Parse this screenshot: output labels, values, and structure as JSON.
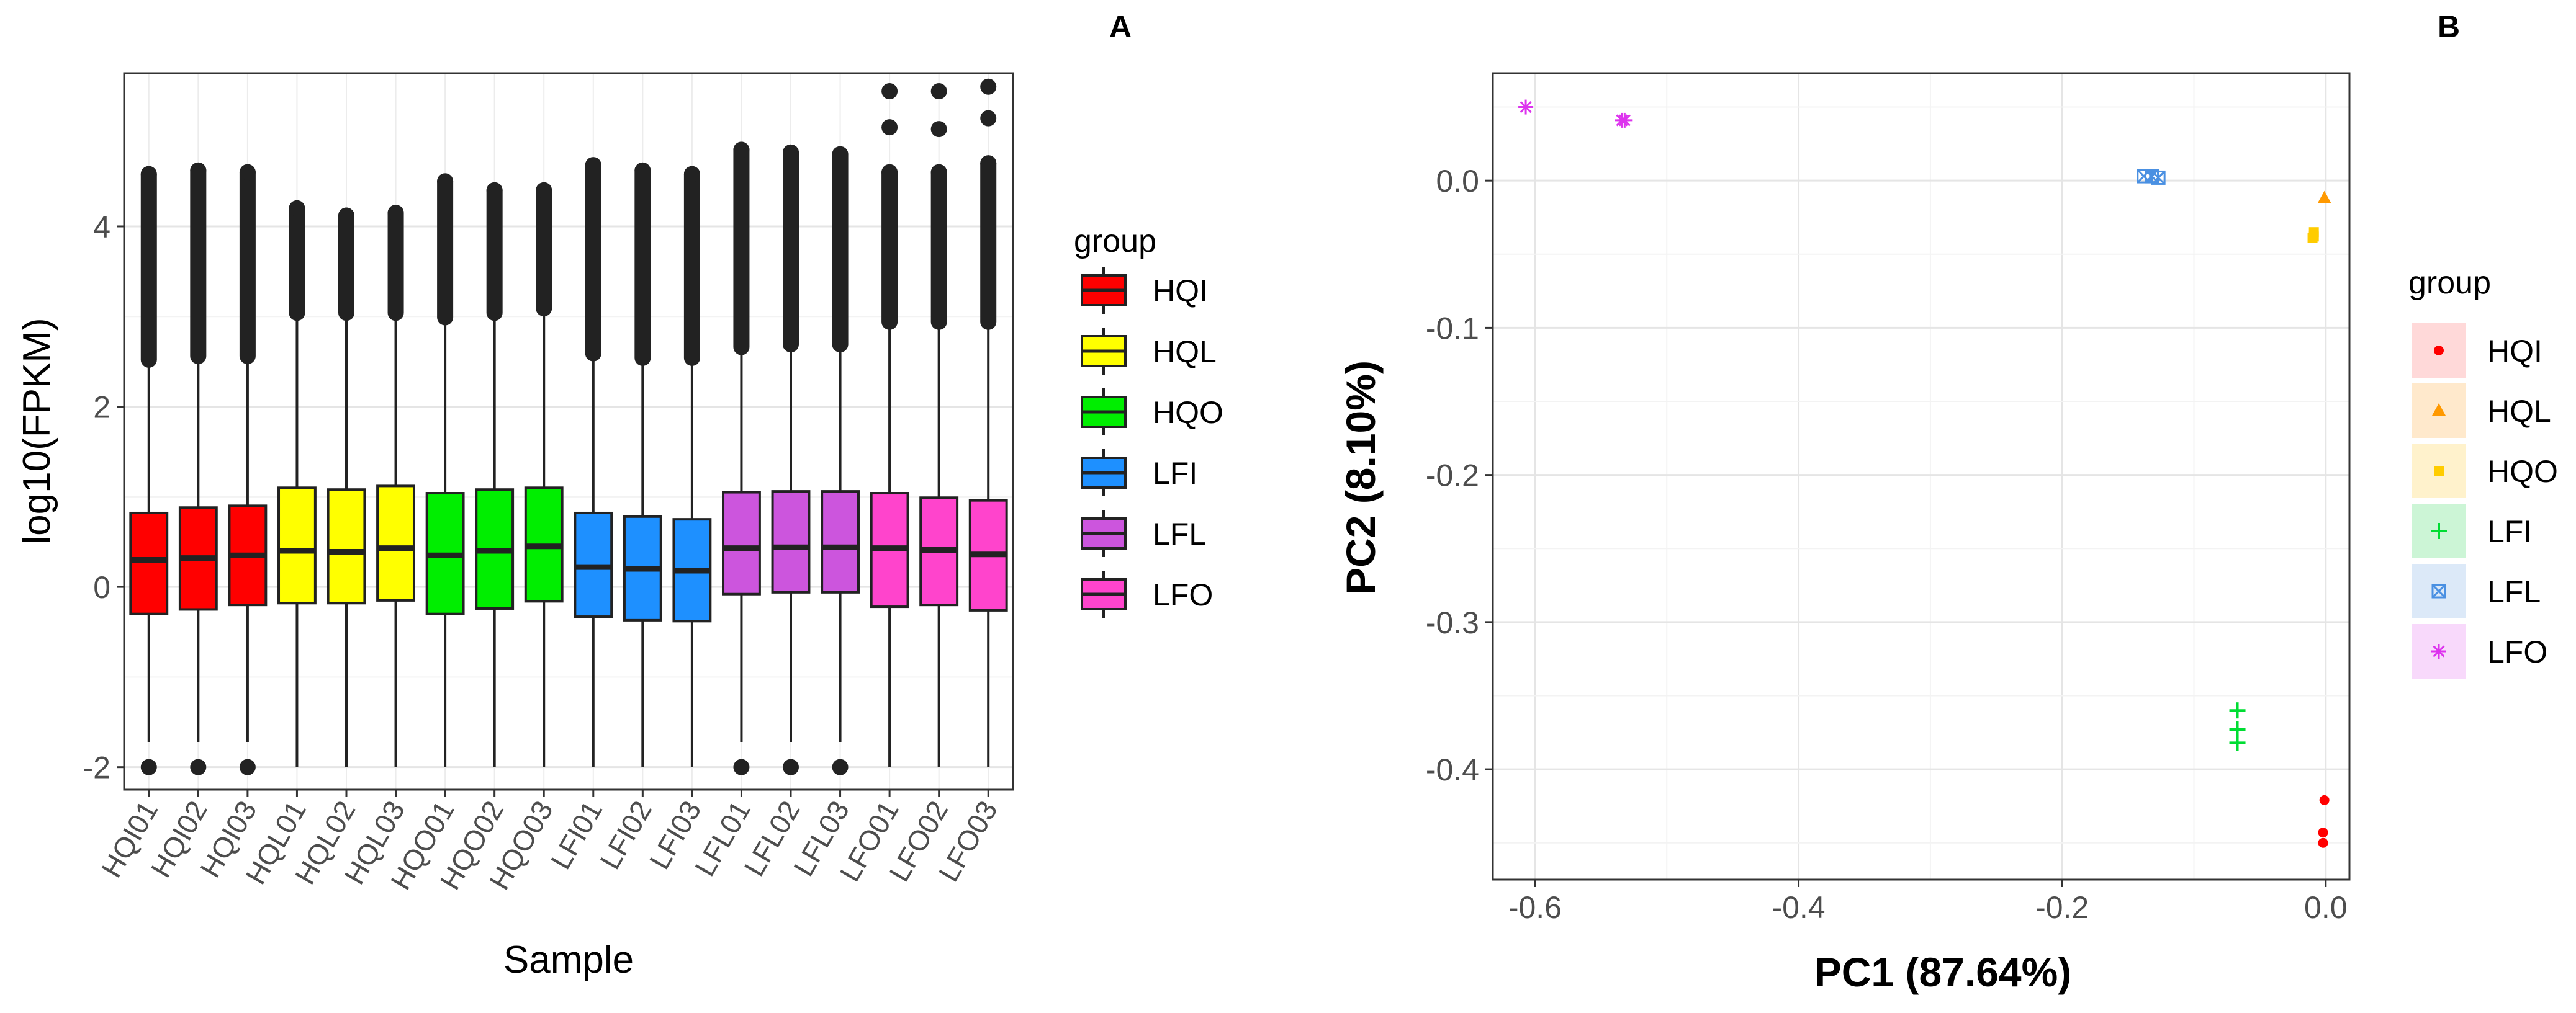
{
  "chart_data": [
    {
      "panel_label": "A",
      "type": "box",
      "title": "",
      "xlabel": "Sample",
      "ylabel": "log10(FPKM)",
      "ylim": [
        -2.25,
        5.7
      ],
      "yticks": [
        -2,
        0,
        2,
        4
      ],
      "ytick_labels": [
        "-2",
        "0",
        "2",
        "4"
      ],
      "grid": true,
      "legend": {
        "title": "group",
        "position": "right",
        "entries": [
          {
            "label": "HQI",
            "color": "#FF0000"
          },
          {
            "label": "HQL",
            "color": "#FFFF00"
          },
          {
            "label": "HQO",
            "color": "#00EE00"
          },
          {
            "label": "LFI",
            "color": "#1E90FF"
          },
          {
            "label": "LFL",
            "color": "#CC55DD"
          },
          {
            "label": "LFO",
            "color": "#FF44CC"
          }
        ]
      },
      "samples": [
        {
          "name": "HQI01",
          "group": "HQI",
          "q1": -0.3,
          "median": 0.3,
          "q3": 0.82,
          "whisker_low": -1.72,
          "whisker_high": 2.48,
          "outlier_max": 4.58,
          "low_outlier": -2.0
        },
        {
          "name": "HQI02",
          "group": "HQI",
          "q1": -0.25,
          "median": 0.32,
          "q3": 0.88,
          "whisker_low": -1.72,
          "whisker_high": 2.52,
          "outlier_max": 4.62,
          "low_outlier": -2.0
        },
        {
          "name": "HQI03",
          "group": "HQI",
          "q1": -0.2,
          "median": 0.35,
          "q3": 0.9,
          "whisker_low": -1.72,
          "whisker_high": 2.52,
          "outlier_max": 4.6,
          "low_outlier": -2.0
        },
        {
          "name": "HQL01",
          "group": "HQL",
          "q1": -0.18,
          "median": 0.4,
          "q3": 1.1,
          "whisker_low": -2.0,
          "whisker_high": 3.0,
          "outlier_max": 4.2,
          "low_outlier": null
        },
        {
          "name": "HQL02",
          "group": "HQL",
          "q1": -0.18,
          "median": 0.39,
          "q3": 1.08,
          "whisker_low": -2.0,
          "whisker_high": 3.0,
          "outlier_max": 4.12,
          "low_outlier": null
        },
        {
          "name": "HQL03",
          "group": "HQL",
          "q1": -0.15,
          "median": 0.43,
          "q3": 1.12,
          "whisker_low": -2.0,
          "whisker_high": 3.0,
          "outlier_max": 4.15,
          "low_outlier": null
        },
        {
          "name": "HQO01",
          "group": "HQO",
          "q1": -0.3,
          "median": 0.35,
          "q3": 1.04,
          "whisker_low": -2.0,
          "whisker_high": 2.95,
          "outlier_max": 4.5,
          "low_outlier": null
        },
        {
          "name": "HQO02",
          "group": "HQO",
          "q1": -0.24,
          "median": 0.4,
          "q3": 1.08,
          "whisker_low": -2.0,
          "whisker_high": 3.0,
          "outlier_max": 4.4,
          "low_outlier": null
        },
        {
          "name": "HQO03",
          "group": "HQO",
          "q1": -0.16,
          "median": 0.45,
          "q3": 1.1,
          "whisker_low": -2.0,
          "whisker_high": 3.05,
          "outlier_max": 4.4,
          "low_outlier": null
        },
        {
          "name": "LFI01",
          "group": "LFI",
          "q1": -0.33,
          "median": 0.22,
          "q3": 0.82,
          "whisker_low": -2.0,
          "whisker_high": 2.55,
          "outlier_max": 4.68,
          "low_outlier": null
        },
        {
          "name": "LFI02",
          "group": "LFI",
          "q1": -0.37,
          "median": 0.2,
          "q3": 0.78,
          "whisker_low": -2.0,
          "whisker_high": 2.5,
          "outlier_max": 4.62,
          "low_outlier": null
        },
        {
          "name": "LFI03",
          "group": "LFI",
          "q1": -0.38,
          "median": 0.18,
          "q3": 0.75,
          "whisker_low": -2.0,
          "whisker_high": 2.5,
          "outlier_max": 4.58,
          "low_outlier": null
        },
        {
          "name": "LFL01",
          "group": "LFL",
          "q1": -0.08,
          "median": 0.43,
          "q3": 1.05,
          "whisker_low": -1.72,
          "whisker_high": 2.62,
          "outlier_max": 4.85,
          "low_outlier": -2.0
        },
        {
          "name": "LFL02",
          "group": "LFL",
          "q1": -0.06,
          "median": 0.44,
          "q3": 1.06,
          "whisker_low": -1.72,
          "whisker_high": 2.65,
          "outlier_max": 4.82,
          "low_outlier": -2.0
        },
        {
          "name": "LFL03",
          "group": "LFL",
          "q1": -0.06,
          "median": 0.44,
          "q3": 1.06,
          "whisker_low": -1.72,
          "whisker_high": 2.65,
          "outlier_max": 4.8,
          "low_outlier": -2.0
        },
        {
          "name": "LFO01",
          "group": "LFO",
          "q1": -0.22,
          "median": 0.43,
          "q3": 1.04,
          "whisker_low": -2.0,
          "whisker_high": 2.9,
          "outlier_max": 4.6,
          "low_outlier": null,
          "extra_outliers": [
            5.1,
            5.5
          ]
        },
        {
          "name": "LFO02",
          "group": "LFO",
          "q1": -0.2,
          "median": 0.41,
          "q3": 0.99,
          "whisker_low": -2.0,
          "whisker_high": 2.9,
          "outlier_max": 4.6,
          "low_outlier": null,
          "extra_outliers": [
            5.08,
            5.5
          ]
        },
        {
          "name": "LFO03",
          "group": "LFO",
          "q1": -0.26,
          "median": 0.36,
          "q3": 0.96,
          "whisker_low": -2.0,
          "whisker_high": 2.9,
          "outlier_max": 4.7,
          "low_outlier": null,
          "extra_outliers": [
            5.2,
            5.55
          ]
        }
      ]
    },
    {
      "panel_label": "B",
      "type": "scatter",
      "title": "",
      "xlabel": "PC1 (87.64%)",
      "ylabel": "PC2 (8.10%)",
      "xlim": [
        -0.632,
        0.018
      ],
      "ylim": [
        -0.475,
        0.073
      ],
      "xticks": [
        -0.6,
        -0.4,
        -0.2,
        0.0
      ],
      "xtick_labels": [
        "-0.6",
        "-0.4",
        "-0.2",
        "0.0"
      ],
      "yticks": [
        0.0,
        -0.1,
        -0.2,
        -0.3,
        -0.4
      ],
      "ytick_labels": [
        "0.0",
        "-0.1",
        "-0.2",
        "-0.3",
        "-0.4"
      ],
      "grid": true,
      "legend": {
        "title": "group",
        "position": "right",
        "entries": [
          {
            "label": "HQI",
            "color": "#FF0000",
            "shape": "circle",
            "bg": "#FFD9D9"
          },
          {
            "label": "HQL",
            "color": "#FF9900",
            "shape": "triangle",
            "bg": "#FFE9CC"
          },
          {
            "label": "HQO",
            "color": "#FFCC00",
            "shape": "square",
            "bg": "#FFF2CC"
          },
          {
            "label": "LFI",
            "color": "#00DD33",
            "shape": "plus",
            "bg": "#CCF5D6"
          },
          {
            "label": "LFL",
            "color": "#4A90E2",
            "shape": "boxx",
            "bg": "#DCE9F8"
          },
          {
            "label": "LFO",
            "color": "#DD33EE",
            "shape": "asterisk",
            "bg": "#F8D9FB"
          }
        ]
      },
      "series": [
        {
          "name": "HQI",
          "points": [
            [
              -0.001,
              -0.421
            ],
            [
              -0.002,
              -0.443
            ],
            [
              -0.002,
              -0.45
            ]
          ]
        },
        {
          "name": "HQL",
          "points": [
            [
              -0.001,
              -0.012
            ]
          ]
        },
        {
          "name": "HQO",
          "points": [
            [
              -0.009,
              -0.035
            ],
            [
              -0.009,
              -0.038
            ],
            [
              -0.01,
              -0.039
            ]
          ]
        },
        {
          "name": "LFI",
          "points": [
            [
              -0.067,
              -0.36
            ],
            [
              -0.067,
              -0.373
            ],
            [
              -0.067,
              -0.382
            ]
          ]
        },
        {
          "name": "LFL",
          "points": [
            [
              -0.138,
              0.003
            ],
            [
              -0.132,
              0.003
            ],
            [
              -0.127,
              0.002
            ]
          ]
        },
        {
          "name": "LFO",
          "points": [
            [
              -0.607,
              0.05
            ],
            [
              -0.534,
              0.041
            ],
            [
              -0.532,
              0.041
            ]
          ]
        }
      ]
    }
  ]
}
